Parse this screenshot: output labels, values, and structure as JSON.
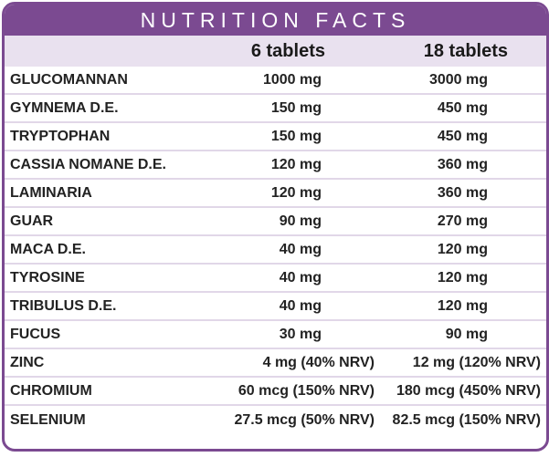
{
  "title": "NUTRITION FACTS",
  "columns": [
    "6 tablets",
    "18 tablets"
  ],
  "colors": {
    "accent": "#7b4a91",
    "header_bg": "#e9e1ef",
    "divider": "#e1d7e8"
  },
  "rows": [
    {
      "name": "GLUCOMANNAN",
      "a": "1000 mg",
      "b": "3000 mg"
    },
    {
      "name": "GYMNEMA D.E.",
      "a": "150 mg",
      "b": "450 mg"
    },
    {
      "name": "TRYPTOPHAN",
      "a": "150 mg",
      "b": "450 mg"
    },
    {
      "name": "CASSIA NOMANE D.E.",
      "a": "120 mg",
      "b": "360 mg"
    },
    {
      "name": "LAMINARIA",
      "a": "120 mg",
      "b": "360 mg"
    },
    {
      "name": "GUAR",
      "a": "90 mg",
      "b": "270 mg"
    },
    {
      "name": "MACA D.E.",
      "a": "40 mg",
      "b": "120 mg"
    },
    {
      "name": "TYROSINE",
      "a": "40 mg",
      "b": "120 mg"
    },
    {
      "name": "TRIBULUS D.E.",
      "a": "40 mg",
      "b": "120 mg"
    },
    {
      "name": "FUCUS",
      "a": "30 mg",
      "b": "90 mg"
    },
    {
      "name": "ZINC",
      "a": "4 mg (40% NRV)",
      "b": "12 mg (120% NRV)"
    },
    {
      "name": "CHROMIUM",
      "a": "60 mcg (150% NRV)",
      "b": "180 mcg (450% NRV)"
    },
    {
      "name": "SELENIUM",
      "a": "27.5 mcg (50% NRV)",
      "b": "82.5 mcg (150% NRV)"
    }
  ]
}
